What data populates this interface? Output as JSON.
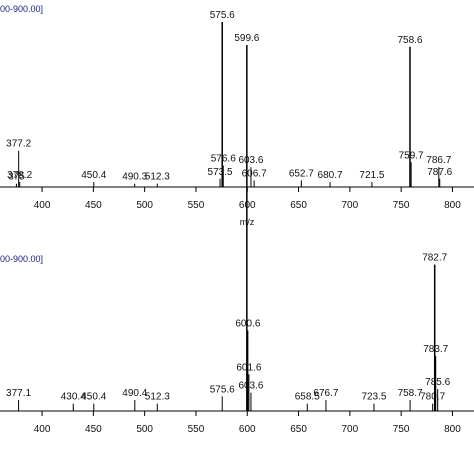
{
  "chart_data": [
    {
      "type": "stem",
      "title": "00-900.00]",
      "xlabel": "m/z",
      "color": "#000000",
      "x": [
        375.0,
        377.2,
        378.2,
        450.4,
        490.3,
        512.3,
        573.5,
        575.6,
        576.6,
        603.6,
        606.7,
        652.7,
        680.7,
        721.5,
        758.6,
        759.7,
        786.7,
        787.6
      ],
      "values": [
        2,
        22,
        3,
        3,
        2,
        2,
        5,
        100,
        13,
        12,
        4,
        4,
        3,
        3,
        85,
        15,
        12,
        5
      ],
      "xlim": [
        359,
        821
      ],
      "ylim": [
        0,
        100
      ],
      "xticks": [
        400,
        450,
        500,
        550,
        600,
        650,
        700,
        750,
        800
      ]
    },
    {
      "type": "stem",
      "title": "00-900.00]",
      "color": "#000000",
      "x": [
        377.1,
        430.4,
        450.4,
        490.4,
        512.3,
        575.6,
        599.6,
        600.6,
        601.6,
        603.6,
        658.5,
        676.7,
        723.5,
        758.7,
        780.7,
        782.7,
        783.7,
        785.6
      ],
      "values": [
        3,
        2,
        2,
        3,
        2,
        4,
        100,
        22,
        10,
        5,
        2,
        3,
        2,
        3,
        2,
        40,
        15,
        6
      ],
      "xlim": [
        359,
        821
      ],
      "ylim": [
        0,
        100
      ],
      "xticks": [
        400,
        450,
        500,
        550,
        600,
        650,
        700,
        750,
        800
      ]
    }
  ]
}
